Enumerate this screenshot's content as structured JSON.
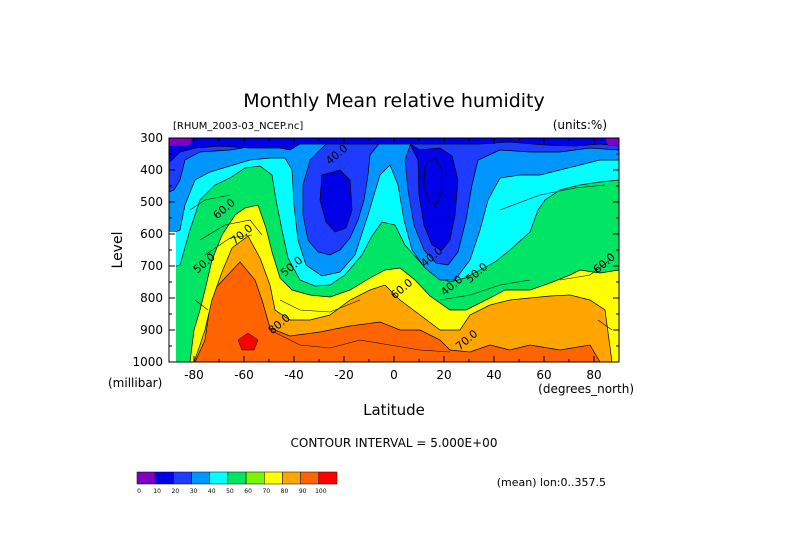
{
  "chart_data": {
    "type": "heatmap",
    "title": "Monthly Mean relative humidity",
    "subtitle_left": "[RHUM_2003-03_NCEP.nc]",
    "subtitle_right": "(units:%)",
    "xlabel": "Latitude",
    "xunits": "(degrees_north)",
    "ylabel": "Level",
    "yunits": "(millibar)",
    "xlim": [
      -90,
      90
    ],
    "ylim": [
      1000,
      300
    ],
    "x_ticks": [
      -80,
      -60,
      -40,
      -20,
      0,
      20,
      40,
      60,
      80
    ],
    "y_ticks": [
      300,
      400,
      500,
      600,
      700,
      800,
      900,
      1000
    ],
    "contour_interval_text": "CONTOUR INTERVAL = 5.000E+00",
    "mean_text": "(mean) lon:0..357.5",
    "contour_labels": [
      {
        "text": "40.0",
        "x": -22,
        "y": 360
      },
      {
        "text": "60.0",
        "x": -67,
        "y": 530
      },
      {
        "text": "70.0",
        "x": -60,
        "y": 610
      },
      {
        "text": "50.0",
        "x": -75,
        "y": 700
      },
      {
        "text": "50.0",
        "x": -40,
        "y": 710
      },
      {
        "text": "80.0",
        "x": -45,
        "y": 890
      },
      {
        "text": "40.0",
        "x": 16,
        "y": 680
      },
      {
        "text": "50.0",
        "x": 34,
        "y": 730
      },
      {
        "text": "40.0",
        "x": 24,
        "y": 770
      },
      {
        "text": "60.0",
        "x": 4,
        "y": 780
      },
      {
        "text": "70.0",
        "x": 30,
        "y": 940
      },
      {
        "text": "60.0",
        "x": 85,
        "y": 700
      }
    ],
    "colorbar": {
      "colors": [
        "#7f00bf",
        "#0000e6",
        "#1e3cff",
        "#0096ff",
        "#00ffff",
        "#00e664",
        "#78f500",
        "#ffff00",
        "#ffa500",
        "#ff6400",
        "#ff0000"
      ],
      "labels": [
        "0",
        "10",
        "20",
        "30",
        "40",
        "50",
        "60",
        "70",
        "80",
        "90",
        "100"
      ]
    }
  }
}
